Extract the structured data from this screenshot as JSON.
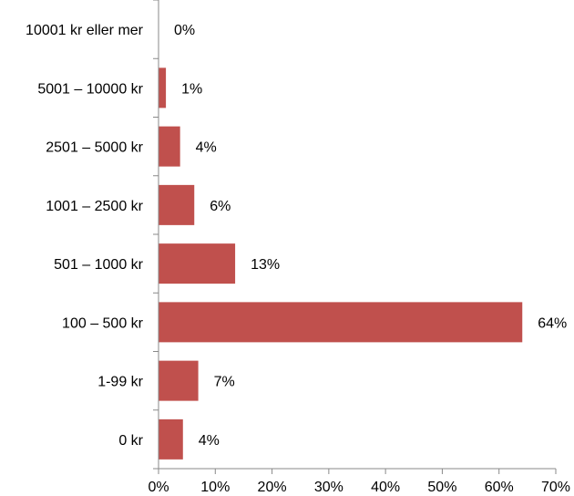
{
  "chart_data": {
    "type": "bar",
    "orientation": "horizontal",
    "categories": [
      "10001 kr eller mer",
      "5001 – 10000 kr",
      "2501 – 5000 kr",
      "1001 – 2500 kr",
      "501 – 1000 kr",
      "100 – 500 kr",
      "1-99 kr",
      "0 kr"
    ],
    "values": [
      0,
      1,
      4,
      6,
      13,
      64,
      7,
      4
    ],
    "data_labels": [
      "0%",
      "1%",
      "4%",
      "6%",
      "13%",
      "64%",
      "7%",
      "4%"
    ],
    "bar_lengths": [
      0,
      1.3,
      3.8,
      6.3,
      13.5,
      64.1,
      7.0,
      4.3
    ],
    "xlim": [
      0,
      70
    ],
    "x_ticks": [
      0,
      10,
      20,
      30,
      40,
      50,
      60,
      70
    ],
    "x_tick_labels": [
      "0%",
      "10%",
      "20%",
      "30%",
      "40%",
      "50%",
      "60%",
      "70%"
    ],
    "title": "",
    "xlabel": "",
    "ylabel": "",
    "grid": false,
    "legend": "none",
    "bar_color": "#c0504d",
    "axis_color": "#898989"
  }
}
